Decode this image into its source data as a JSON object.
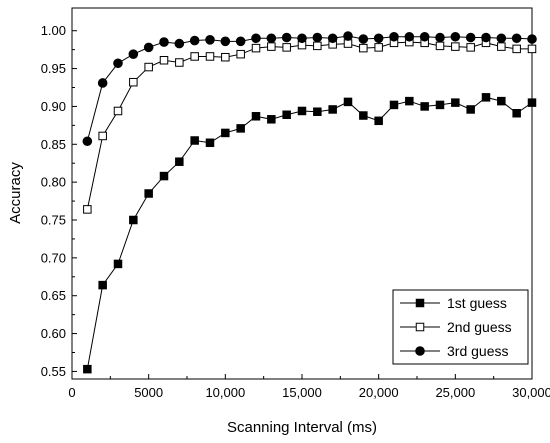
{
  "chart_data": {
    "type": "line",
    "xlabel": "Scanning Interval (ms)",
    "ylabel": "Accuracy",
    "xlim": [
      0,
      30000
    ],
    "ylim": [
      0.54,
      1.03
    ],
    "x_ticks": [
      0,
      5000,
      10000,
      15000,
      20000,
      25000,
      30000
    ],
    "x_tick_labels": [
      "0",
      "5000",
      "10,000",
      "15,000",
      "20,000",
      "25,000",
      "30,000"
    ],
    "y_ticks": [
      0.55,
      0.6,
      0.65,
      0.7,
      0.75,
      0.8,
      0.85,
      0.9,
      0.95,
      1.0
    ],
    "y_tick_labels": [
      "0.55",
      "0.60",
      "0.65",
      "0.70",
      "0.75",
      "0.80",
      "0.85",
      "0.90",
      "0.95",
      "1.00"
    ],
    "grid": false,
    "legend_position": "bottom-right",
    "x": [
      1000,
      2000,
      3000,
      4000,
      5000,
      6000,
      7000,
      8000,
      9000,
      10000,
      11000,
      12000,
      13000,
      14000,
      15000,
      16000,
      17000,
      18000,
      19000,
      20000,
      21000,
      22000,
      23000,
      24000,
      25000,
      26000,
      27000,
      28000,
      29000,
      30000
    ],
    "series": [
      {
        "name": "1st guess",
        "marker": "filled-square",
        "values": [
          0.553,
          0.664,
          0.692,
          0.75,
          0.785,
          0.808,
          0.827,
          0.855,
          0.852,
          0.865,
          0.871,
          0.887,
          0.883,
          0.889,
          0.894,
          0.893,
          0.896,
          0.906,
          0.888,
          0.881,
          0.902,
          0.907,
          0.9,
          0.902,
          0.905,
          0.896,
          0.912,
          0.907,
          0.891,
          0.905
        ]
      },
      {
        "name": "2nd guess",
        "marker": "open-square",
        "values": [
          0.764,
          0.861,
          0.894,
          0.932,
          0.952,
          0.961,
          0.958,
          0.966,
          0.966,
          0.965,
          0.969,
          0.977,
          0.979,
          0.978,
          0.981,
          0.98,
          0.982,
          0.983,
          0.977,
          0.978,
          0.984,
          0.985,
          0.984,
          0.98,
          0.979,
          0.978,
          0.984,
          0.979,
          0.976,
          0.976
        ]
      },
      {
        "name": "3rd guess",
        "marker": "filled-circle",
        "values": [
          0.854,
          0.931,
          0.957,
          0.969,
          0.978,
          0.985,
          0.983,
          0.987,
          0.988,
          0.986,
          0.986,
          0.99,
          0.99,
          0.991,
          0.99,
          0.991,
          0.99,
          0.993,
          0.989,
          0.99,
          0.992,
          0.992,
          0.992,
          0.991,
          0.992,
          0.991,
          0.991,
          0.99,
          0.99,
          0.989
        ]
      }
    ]
  }
}
